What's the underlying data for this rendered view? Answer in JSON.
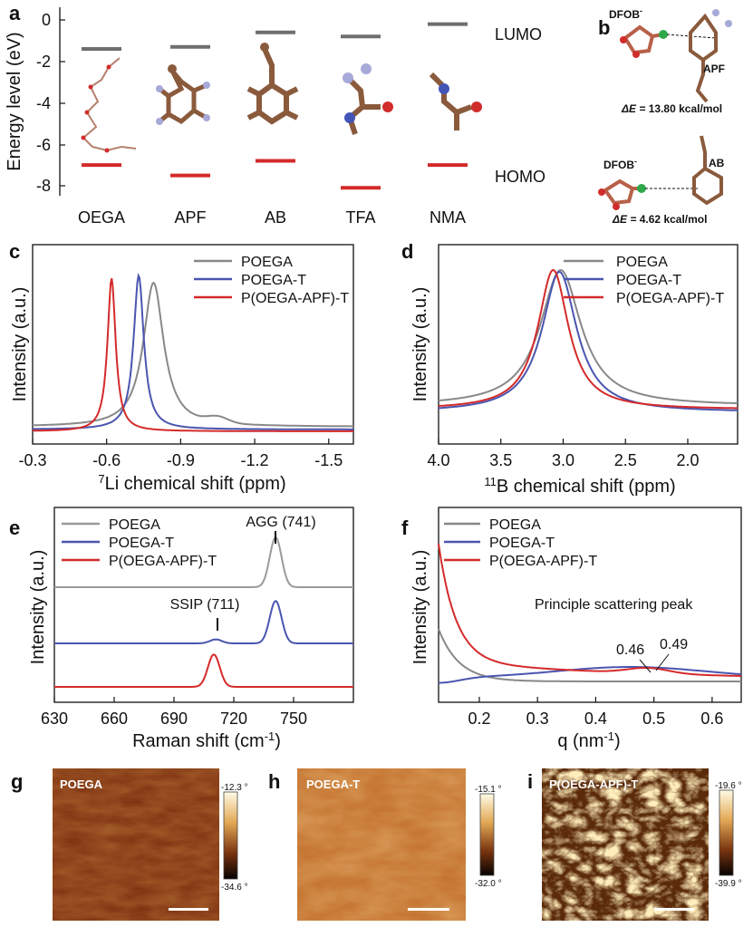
{
  "panel_labels": [
    "a",
    "b",
    "c",
    "d",
    "e",
    "f",
    "g",
    "h",
    "i"
  ],
  "colors": {
    "poega": "#888888",
    "poega_t": "#4a55b0",
    "p_oega_apf_t": "#d42a2a",
    "lumo": "#6e6e6e",
    "homo": "#d42a2a"
  },
  "chart_data": [
    {
      "panel": "a",
      "type": "bar",
      "title": "",
      "ylabel": "Energy level (eV)",
      "xlabel": "",
      "categories": [
        "OEGA",
        "APF",
        "AB",
        "TFA",
        "NMA"
      ],
      "series": [
        {
          "name": "LUMO",
          "values": [
            -1.4,
            -1.3,
            -0.6,
            -0.8,
            -0.2
          ]
        },
        {
          "name": "HOMO",
          "values": [
            -7.0,
            -7.5,
            -6.8,
            -8.1,
            -7.0
          ]
        }
      ],
      "ylim": [
        -9,
        0
      ],
      "yticks": [
        "0",
        "-2",
        "-4",
        "-6",
        "-8"
      ],
      "annotations": [
        "LUMO",
        "HOMO"
      ]
    },
    {
      "panel": "c",
      "type": "line",
      "xlabel": "7Li chemical shift (ppm)",
      "xlabel_sup": "7",
      "xlabel_rest": "Li chemical shift (ppm)",
      "ylabel": "Intensity (a.u.)",
      "xlim": [
        -0.3,
        -1.6
      ],
      "xticks": [
        "-0.3",
        "-0.6",
        "-0.9",
        "-1.2",
        "-1.5"
      ],
      "legend": [
        "POEGA",
        "POEGA-T",
        "P(OEGA-APF)-T"
      ],
      "series": [
        {
          "name": "POEGA",
          "peak": -0.79,
          "width": 0.05
        },
        {
          "name": "POEGA-T",
          "peak": -0.73,
          "width": 0.025
        },
        {
          "name": "P(OEGA-APF)-T",
          "peak": -0.62,
          "width": 0.02
        }
      ]
    },
    {
      "panel": "d",
      "type": "line",
      "xlabel": "11B chemical shift (ppm)",
      "xlabel_sup": "11",
      "xlabel_rest": "B chemical shift (ppm)",
      "ylabel": "Intensity (a.u.)",
      "xlim": [
        4.0,
        1.6
      ],
      "xticks": [
        "4.0",
        "3.5",
        "3.0",
        "2.5",
        "2.0"
      ],
      "legend": [
        "POEGA",
        "POEGA-T",
        "P(OEGA-APF)-T"
      ],
      "series": [
        {
          "name": "POEGA",
          "peak": 3.02,
          "width": 0.2
        },
        {
          "name": "POEGA-T",
          "peak": 3.03,
          "width": 0.17
        },
        {
          "name": "P(OEGA-APF)-T",
          "peak": 3.08,
          "width": 0.15
        }
      ]
    },
    {
      "panel": "e",
      "type": "line",
      "xlabel": "Raman shift (cm-1)",
      "xlabel_main": "Raman shift (cm",
      "xlabel_sup": "-1",
      "xlabel_end": ")",
      "ylabel": "Intensity (a.u.)",
      "xlim": [
        630,
        780
      ],
      "xticks": [
        "630",
        "660",
        "690",
        "720",
        "750"
      ],
      "legend": [
        "POEGA",
        "POEGA-T",
        "P(OEGA-APF)-T"
      ],
      "annotations": [
        "AGG (741)",
        "SSIP (711)"
      ],
      "series": [
        {
          "name": "POEGA",
          "peaks": [
            [
              741,
              1.0
            ]
          ]
        },
        {
          "name": "POEGA-T",
          "peaks": [
            [
              741,
              0.85
            ],
            [
              711,
              0.08
            ]
          ]
        },
        {
          "name": "P(OEGA-APF)-T",
          "peaks": [
            [
              710,
              0.65
            ]
          ]
        }
      ]
    },
    {
      "panel": "f",
      "type": "line",
      "xlabel": "q (nm-1)",
      "xlabel_main": "q (nm",
      "xlabel_sup": "-1",
      "xlabel_end": ")",
      "ylabel": "Intensity (a.u.)",
      "xlim": [
        0.13,
        0.65
      ],
      "xticks": [
        "0.2",
        "0.3",
        "0.4",
        "0.5",
        "0.6"
      ],
      "legend": [
        "POEGA",
        "POEGA-T",
        "P(OEGA-APF)-T"
      ],
      "annotations": [
        "Principle scattering peak",
        "0.46",
        "0.49"
      ]
    }
  ],
  "panel_b": {
    "top": {
      "ion": "DFOB",
      "ion_sup": "-",
      "molecule": "APF",
      "energy_prefix": "ΔE = ",
      "energy": "13.80 kcal/mol"
    },
    "bottom": {
      "ion": "DFOB",
      "ion_sup": "-",
      "molecule": "AB",
      "energy_prefix": "ΔE = ",
      "energy": "4.62 kcal/mol"
    }
  },
  "afm": [
    {
      "panel": "g",
      "name": "POEGA",
      "scale_max": "-12.3 °",
      "scale_min": "-34.6 °"
    },
    {
      "panel": "h",
      "name": "POEGA-T",
      "scale_max": "-15.1 °",
      "scale_min": "-32.0 °"
    },
    {
      "panel": "i",
      "name": "P(OEGA-APF)-T",
      "scale_max": "-19.6 °",
      "scale_min": "-39.9 °"
    }
  ]
}
